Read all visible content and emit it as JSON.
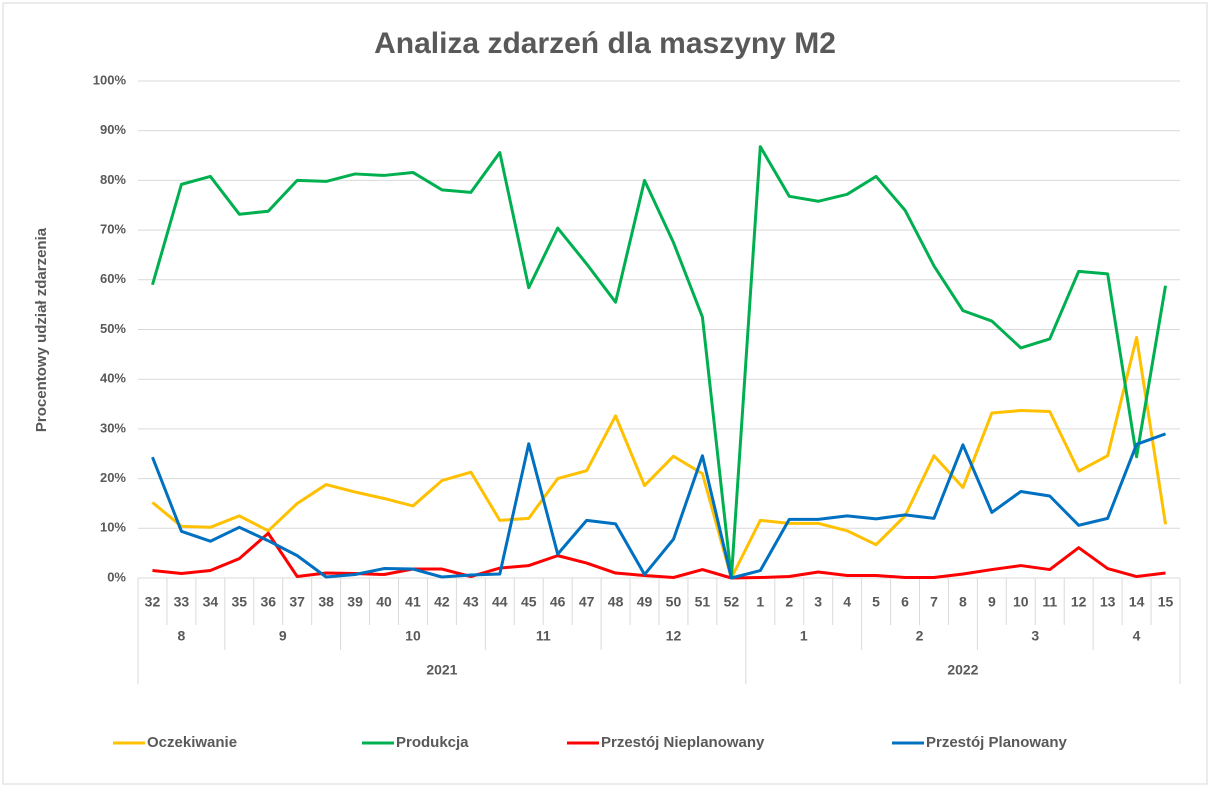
{
  "chart_data": {
    "type": "line",
    "title": "Analiza zdarzeń dla maszyny M2",
    "y_label": "Procentowy udział zdarzenia",
    "years": [
      {
        "label": "2021",
        "months": [
          {
            "label": "8",
            "weeks": [
              "32",
              "33",
              "34"
            ]
          },
          {
            "label": "9",
            "weeks": [
              "35",
              "36",
              "37",
              "38"
            ]
          },
          {
            "label": "10",
            "weeks": [
              "39",
              "40",
              "41",
              "42",
              "43"
            ]
          },
          {
            "label": "11",
            "weeks": [
              "44",
              "45",
              "46",
              "47"
            ]
          },
          {
            "label": "12",
            "weeks": [
              "48",
              "49",
              "50",
              "51",
              "52"
            ]
          }
        ]
      },
      {
        "label": "2022",
        "months": [
          {
            "label": "1",
            "weeks": [
              "1",
              "2",
              "3",
              "4"
            ]
          },
          {
            "label": "2",
            "weeks": [
              "5",
              "6",
              "7",
              "8"
            ]
          },
          {
            "label": "3",
            "weeks": [
              "9",
              "10",
              "11",
              "12"
            ]
          },
          {
            "label": "4",
            "weeks": [
              "13",
              "14",
              "15"
            ]
          }
        ]
      }
    ],
    "series": [
      {
        "name": "Oczekiwanie",
        "color": "#ffc000",
        "values": [
          15.2,
          10.4,
          10.2,
          12.5,
          9.5,
          15,
          18.8,
          17.3,
          16,
          14.5,
          19.6,
          21.3,
          11.6,
          12,
          20,
          21.6,
          32.6,
          18.6,
          24.5,
          21,
          0,
          11.6,
          11,
          11,
          9.5,
          6.7,
          12.5,
          24.6,
          18.2,
          33.2,
          33.7,
          33.5,
          21.5,
          24.6,
          48.4,
          10.8
        ]
      },
      {
        "name": "Produkcja",
        "color": "#00b050",
        "values": [
          59,
          79.2,
          80.8,
          73.2,
          73.8,
          80,
          79.8,
          81.3,
          81,
          81.6,
          78.1,
          77.6,
          85.6,
          58.4,
          70.4,
          63.2,
          55.5,
          80,
          67.5,
          52.5,
          0,
          86.8,
          76.8,
          75.8,
          77.2,
          80.8,
          74,
          62.8,
          53.8,
          51.7,
          46.3,
          48.1,
          61.7,
          61.2,
          24.4,
          58.8
        ]
      },
      {
        "name": "Przestój Nieplanowany",
        "color": "#ff0000",
        "values": [
          1.5,
          0.9,
          1.5,
          3.9,
          9,
          0.3,
          1,
          0.9,
          0.7,
          1.8,
          1.8,
          0.3,
          2,
          2.5,
          4.5,
          3,
          1,
          0.5,
          0.1,
          1.7,
          0,
          0.1,
          0.3,
          1.2,
          0.5,
          0.5,
          0.1,
          0.1,
          0.8,
          1.7,
          2.5,
          1.7,
          6.1,
          1.9,
          0.3,
          1
        ]
      },
      {
        "name": "Przestój Planowany",
        "color": "#0070c0",
        "values": [
          24.3,
          9.4,
          7.4,
          10.2,
          7.5,
          4.5,
          0.2,
          0.7,
          1.9,
          1.8,
          0.2,
          0.6,
          0.8,
          27,
          4.8,
          11.6,
          10.9,
          0.7,
          7.8,
          24.6,
          0,
          1.5,
          11.8,
          11.8,
          12.5,
          11.9,
          12.7,
          12,
          26.8,
          13.2,
          17.4,
          16.5,
          10.6,
          12,
          26.9,
          29
        ]
      }
    ],
    "ylim": [
      0,
      100
    ],
    "yticks": [
      {
        "value": 0,
        "label": "0%"
      },
      {
        "value": 10,
        "label": "10%"
      },
      {
        "value": 20,
        "label": "20%"
      },
      {
        "value": 30,
        "label": "30%"
      },
      {
        "value": 40,
        "label": "40%"
      },
      {
        "value": 50,
        "label": "50%"
      },
      {
        "value": 60,
        "label": "60%"
      },
      {
        "value": 70,
        "label": "70%"
      },
      {
        "value": 80,
        "label": "80%"
      },
      {
        "value": 90,
        "label": "90%"
      },
      {
        "value": 100,
        "label": "100%"
      }
    ],
    "grid": true,
    "legend": "bottom"
  }
}
